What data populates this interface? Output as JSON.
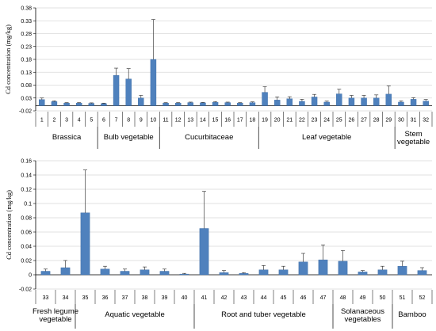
{
  "chart_data": [
    {
      "type": "bar",
      "ylabel": "Cd concentration (mg/kg)",
      "ylim": [
        -0.02,
        0.38
      ],
      "yticks": [
        "0.38",
        "0.33",
        "0.28",
        "0.23",
        "0.18",
        "0.13",
        "0.08",
        "0.03",
        "-0.02"
      ],
      "ytick_values": [
        0.38,
        0.33,
        0.28,
        0.23,
        0.18,
        0.13,
        0.08,
        0.03,
        -0.02
      ],
      "categories": [
        "1",
        "2",
        "3",
        "4",
        "5",
        "6",
        "7",
        "8",
        "9",
        "10",
        "11",
        "12",
        "13",
        "14",
        "15",
        "16",
        "17",
        "18",
        "19",
        "20",
        "21",
        "22",
        "23",
        "24",
        "25",
        "26",
        "27",
        "28",
        "29",
        "30",
        "31",
        "32"
      ],
      "values": [
        0.024,
        0.016,
        0.01,
        0.01,
        0.009,
        0.008,
        0.118,
        0.104,
        0.03,
        0.18,
        0.01,
        0.01,
        0.012,
        0.011,
        0.013,
        0.012,
        0.01,
        0.012,
        0.052,
        0.022,
        0.027,
        0.017,
        0.034,
        0.014,
        0.046,
        0.03,
        0.03,
        0.03,
        0.045,
        0.014,
        0.025,
        0.018
      ],
      "errors": [
        0.006,
        0.003,
        0.002,
        0.002,
        0.002,
        0.002,
        0.028,
        0.04,
        0.01,
        0.155,
        0.002,
        0.002,
        0.002,
        0.002,
        0.003,
        0.002,
        0.002,
        0.003,
        0.022,
        0.012,
        0.008,
        0.008,
        0.01,
        0.004,
        0.018,
        0.01,
        0.01,
        0.012,
        0.032,
        0.005,
        0.006,
        0.006
      ],
      "groups": [
        {
          "label": "Brassica",
          "start": 1,
          "end": 5
        },
        {
          "label": "Bulb vegetable",
          "start": 6,
          "end": 10
        },
        {
          "label": "Cucurbitaceae",
          "start": 11,
          "end": 18
        },
        {
          "label": "Leaf vegetable",
          "start": 19,
          "end": 29
        },
        {
          "label": "Stem vegetable",
          "start": 30,
          "end": 32
        }
      ],
      "bar_color": "#4f81bd"
    },
    {
      "type": "bar",
      "ylabel": "Cd concentration (mg/kg)",
      "ylim": [
        -0.02,
        0.16
      ],
      "yticks": [
        "0.16",
        "0.14",
        "0.12",
        "0.1",
        "0.08",
        "0.06",
        "0.04",
        "0.02",
        "0",
        "-0.02"
      ],
      "ytick_values": [
        0.16,
        0.14,
        0.12,
        0.1,
        0.08,
        0.06,
        0.04,
        0.02,
        0,
        -0.02
      ],
      "categories": [
        "33",
        "34",
        "35",
        "36",
        "37",
        "38",
        "39",
        "40",
        "41",
        "42",
        "43",
        "44",
        "45",
        "46",
        "47",
        "48",
        "49",
        "50",
        "51",
        "52"
      ],
      "values": [
        0.005,
        0.01,
        0.087,
        0.008,
        0.005,
        0.007,
        0.005,
        0.001,
        0.065,
        0.003,
        0.002,
        0.007,
        0.007,
        0.018,
        0.021,
        0.019,
        0.004,
        0.007,
        0.012,
        0.006
      ],
      "errors": [
        0.003,
        0.01,
        0.06,
        0.004,
        0.003,
        0.004,
        0.003,
        0.001,
        0.052,
        0.003,
        0.001,
        0.006,
        0.005,
        0.012,
        0.021,
        0.015,
        0.002,
        0.005,
        0.007,
        0.004
      ],
      "groups": [
        {
          "label": "Fresh legume vegetable",
          "start": 33,
          "end": 34
        },
        {
          "label": "Aquatic vegetable",
          "start": 35,
          "end": 40
        },
        {
          "label": "Root and tuber vegetable",
          "start": 41,
          "end": 47
        },
        {
          "label": "Solanaceous vegetables",
          "start": 48,
          "end": 50
        },
        {
          "label": "Bamboo",
          "start": 51,
          "end": 52
        }
      ],
      "bar_color": "#4f81bd"
    }
  ]
}
